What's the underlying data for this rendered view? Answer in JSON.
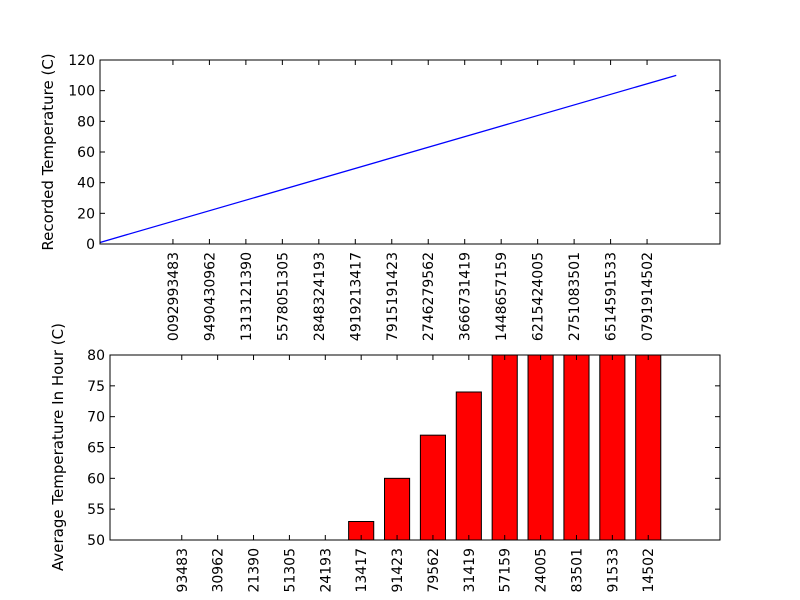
{
  "chart_data": [
    {
      "type": "line",
      "ylabel": "Recorded Temperature (C)",
      "xlabel": "",
      "ylim": [
        0,
        120
      ],
      "yticks": [
        0,
        20,
        40,
        60,
        80,
        100,
        120
      ],
      "xlim": [
        0,
        17
      ],
      "xticks": [
        2,
        3,
        4,
        5,
        6,
        7,
        8,
        9,
        10,
        11,
        12,
        13,
        14,
        15
      ],
      "xtick_labels": [
        "0092993483",
        "9490430962",
        "1313121390",
        "5578051305",
        "2848324193",
        "4919213417",
        "7915191423",
        "2746279562",
        "3666731419",
        "1448657159",
        "6215424005",
        "2751083501",
        "6514591533",
        "0791914502"
      ],
      "series": [
        {
          "x": [
            0,
            15.8
          ],
          "y": [
            1,
            110
          ],
          "color": "#0000ff"
        }
      ],
      "grid": false
    },
    {
      "type": "bar",
      "ylabel": "Average Temperature In Hour (C)",
      "xlabel": "",
      "ylim": [
        50,
        80
      ],
      "yticks": [
        50,
        55,
        60,
        65,
        70,
        75,
        80
      ],
      "xlim": [
        0,
        17
      ],
      "xticks": [
        2,
        3,
        4,
        5,
        6,
        7,
        8,
        9,
        10,
        11,
        12,
        13,
        14,
        15
      ],
      "categories": [
        "93483",
        "30962",
        "21390",
        "51305",
        "24193",
        "13417",
        "91423",
        "79562",
        "31419",
        "57159",
        "24005",
        "83501",
        "91533",
        "14502"
      ],
      "values": [
        50,
        50,
        50,
        50,
        50,
        53,
        60,
        67,
        74,
        80,
        80,
        80,
        80,
        80
      ],
      "color": "#ff0000",
      "grid": false
    }
  ]
}
